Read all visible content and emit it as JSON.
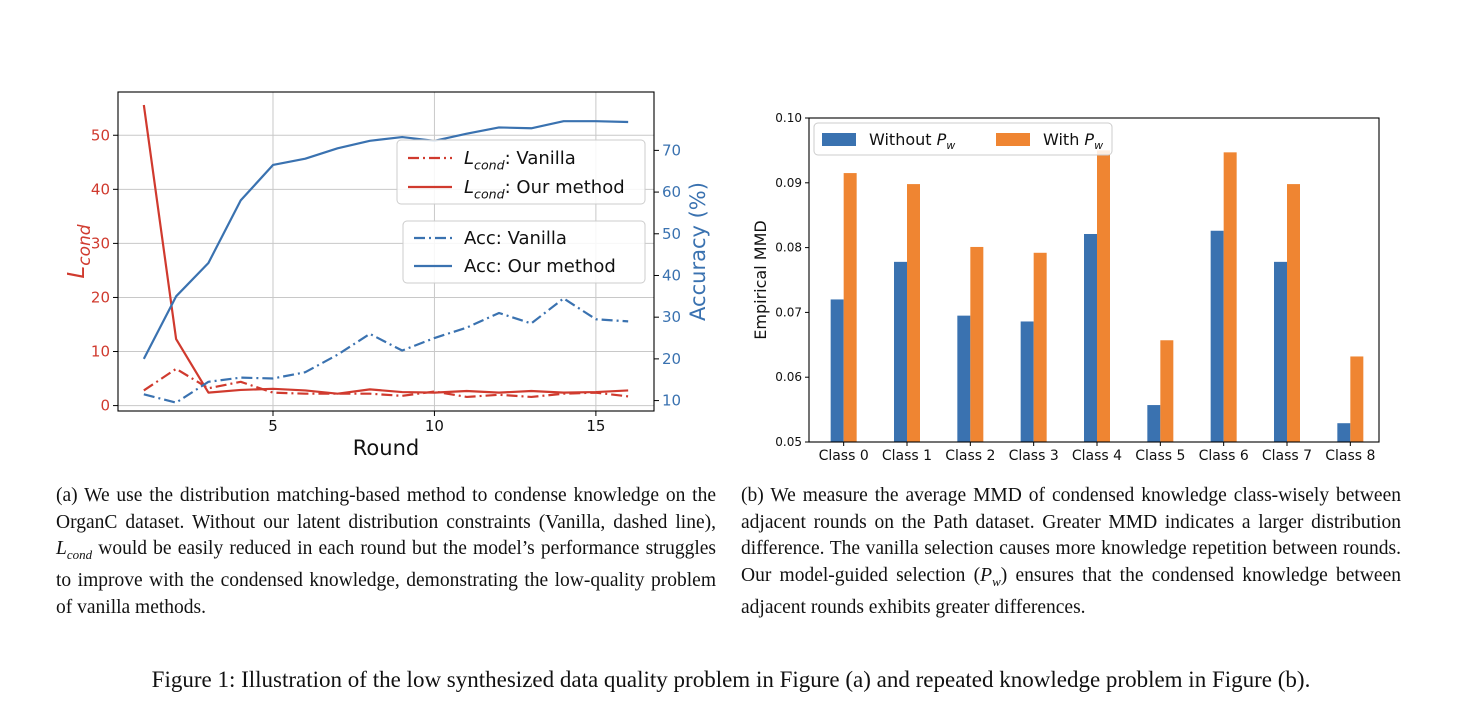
{
  "chart_data": [
    {
      "type": "line",
      "xlabel": "Round",
      "ylabel_left": "L_cond",
      "ylabel_right": "Accuracy (%)",
      "x": [
        1,
        2,
        3,
        4,
        5,
        6,
        7,
        8,
        9,
        10,
        11,
        12,
        13,
        14,
        15,
        16
      ],
      "xticks": [
        "5",
        "10",
        "15"
      ],
      "left_yticks": [
        "0",
        "10",
        "20",
        "30",
        "40",
        "50"
      ],
      "right_yticks": [
        "10",
        "20",
        "30",
        "40",
        "50",
        "60",
        "70"
      ],
      "ylim_left": [
        -1,
        58
      ],
      "ylim_right": [
        7.5,
        84
      ],
      "grid": true,
      "legend_groups": [
        [
          "L_cond: Vanilla",
          "L_cond: Our method"
        ],
        [
          "Acc: Vanilla",
          "Acc: Our method"
        ]
      ],
      "series": [
        {
          "name": "L_cond: Vanilla",
          "axis": "left",
          "color": "#d03a2e",
          "style": "dashdot",
          "values": [
            2.8,
            6.8,
            3.2,
            4.4,
            2.4,
            2.2,
            2.2,
            2.2,
            1.8,
            2.6,
            1.6,
            2.0,
            1.6,
            2.2,
            2.4,
            1.7
          ]
        },
        {
          "name": "L_cond: Our method",
          "axis": "left",
          "color": "#d03a2e",
          "style": "solid",
          "values": [
            55.6,
            12.3,
            2.4,
            2.9,
            3.1,
            2.8,
            2.2,
            3.0,
            2.5,
            2.4,
            2.7,
            2.4,
            2.7,
            2.4,
            2.5,
            2.8
          ]
        },
        {
          "name": "Acc: Vanilla",
          "axis": "right",
          "color": "#3a72b0",
          "style": "dashdot",
          "values": [
            11.5,
            9.5,
            14.5,
            15.5,
            15.3,
            16.8,
            21.0,
            26.0,
            22.0,
            25.0,
            27.5,
            31.0,
            28.5,
            34.5,
            29.5,
            29.0
          ]
        },
        {
          "name": "Acc: Our method",
          "axis": "right",
          "color": "#3a72b0",
          "style": "solid",
          "values": [
            20.0,
            35.0,
            43.0,
            58.0,
            66.5,
            68.0,
            70.5,
            72.3,
            73.2,
            72.3,
            74.0,
            75.5,
            75.3,
            77.0,
            77.0,
            76.8
          ]
        }
      ]
    },
    {
      "type": "bar",
      "ylabel": "Empirical MMD",
      "xlabel": "",
      "ylim": [
        0.05,
        0.1
      ],
      "yticks": [
        "0.05",
        "0.06",
        "0.07",
        "0.08",
        "0.09",
        "0.10"
      ],
      "categories": [
        "Class 0",
        "Class 1",
        "Class 2",
        "Class 3",
        "Class 4",
        "Class 5",
        "Class 6",
        "Class 7",
        "Class 8"
      ],
      "legend": "top-left",
      "series": [
        {
          "name": "Without P_w",
          "color": "#3a72b0",
          "values": [
            0.072,
            0.0778,
            0.0695,
            0.0686,
            0.0821,
            0.0557,
            0.0826,
            0.0778,
            0.0529
          ]
        },
        {
          "name": "With P_w",
          "color": "#ef8532",
          "values": [
            0.0915,
            0.0898,
            0.0801,
            0.0792,
            0.095,
            0.0657,
            0.0947,
            0.0898,
            0.0632
          ]
        }
      ]
    }
  ],
  "captions": {
    "a_text": "(a) We use the distribution matching-based method to condense knowledge on the OrganC dataset. Without our latent distribution constraints (Vanilla, dashed line), ",
    "a_math": "L",
    "a_math_sub": "cond",
    "a_text2": " would be easily reduced in each round but the model’s performance struggles to improve with the condensed knowledge, demonstrating the low-quality problem of vanilla methods.",
    "b_text": "(b) We measure the average MMD of condensed knowledge class-wisely between adjacent rounds on the Path dataset. Greater MMD indicates a larger distribution difference. The vanilla selection causes more knowledge repetition between rounds. Our model-guided selection (",
    "b_math": "P",
    "b_math_sub": "w",
    "b_text2": ") ensures that the condensed knowledge between adjacent rounds exhibits greater differences.",
    "figure": "Figure 1: Illustration of the low synthesized data quality problem in Figure (a) and repeated knowledge problem in Figure (b)."
  }
}
